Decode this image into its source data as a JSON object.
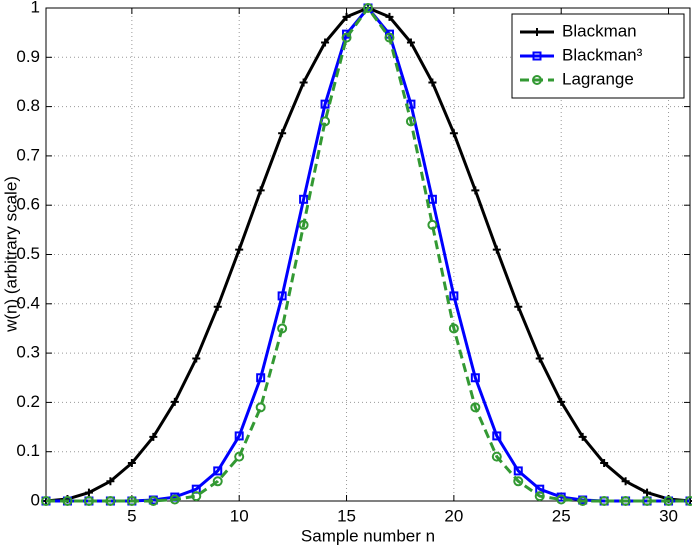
{
  "chart_data": {
    "type": "line",
    "xlabel": "Sample number n",
    "ylabel": "w(n) (arbitrary scale)",
    "x": [
      1,
      2,
      3,
      4,
      5,
      6,
      7,
      8,
      9,
      10,
      11,
      12,
      13,
      14,
      15,
      16,
      17,
      18,
      19,
      20,
      21,
      22,
      23,
      24,
      25,
      26,
      27,
      28,
      29,
      30,
      31
    ],
    "series": [
      {
        "name": "Blackman",
        "color": "#000000",
        "marker": "plus",
        "dash": false,
        "values": [
          0,
          0.004,
          0.017,
          0.04,
          0.077,
          0.13,
          0.201,
          0.289,
          0.394,
          0.51,
          0.63,
          0.746,
          0.849,
          0.93,
          0.982,
          1,
          0.982,
          0.93,
          0.849,
          0.746,
          0.63,
          0.51,
          0.394,
          0.289,
          0.201,
          0.13,
          0.077,
          0.04,
          0.017,
          0.004,
          0
        ]
      },
      {
        "name": "Blackman³",
        "color": "#0000ff",
        "marker": "square",
        "dash": false,
        "values": [
          0,
          0,
          0,
          0,
          0,
          0.002,
          0.008,
          0.024,
          0.061,
          0.132,
          0.25,
          0.416,
          0.612,
          0.805,
          0.947,
          1,
          0.947,
          0.805,
          0.612,
          0.416,
          0.25,
          0.132,
          0.061,
          0.024,
          0.008,
          0.002,
          0,
          0,
          0,
          0,
          0
        ]
      },
      {
        "name": "Lagrange",
        "color": "#339933",
        "marker": "circle",
        "dash": true,
        "values": [
          0,
          0,
          0,
          0,
          0,
          0,
          0.003,
          0.01,
          0.04,
          0.09,
          0.19,
          0.35,
          0.56,
          0.77,
          0.94,
          1,
          0.94,
          0.77,
          0.56,
          0.35,
          0.19,
          0.09,
          0.04,
          0.01,
          0.003,
          0,
          0,
          0,
          0,
          0,
          0
        ]
      }
    ],
    "xlim": [
      1,
      31
    ],
    "xticks": [
      5,
      10,
      15,
      20,
      25,
      30
    ],
    "ylim": [
      0,
      1
    ],
    "yticks": [
      0,
      0.1,
      0.2,
      0.3,
      0.4,
      0.5,
      0.6,
      0.7,
      0.8,
      0.9,
      1
    ],
    "grid": true,
    "legend": "upper-right"
  }
}
